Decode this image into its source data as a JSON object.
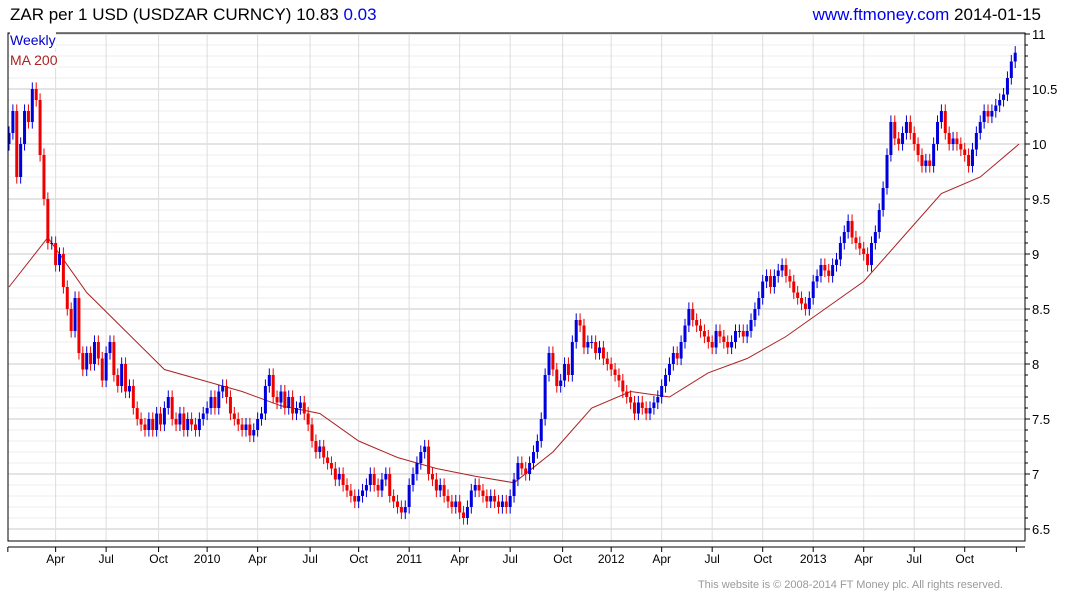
{
  "header": {
    "title": "ZAR per 1 USD (USDZAR CURNCY) 10.83",
    "change": "0.03",
    "site": "www.ftmoney.com",
    "date": "2014-01-15"
  },
  "legend": {
    "period": "Weekly",
    "ma": "MA 200"
  },
  "footer": "This website is © 2008-2014 FT Money plc. All rights reserved.",
  "colors": {
    "up": "#0000dd",
    "down": "#ee0000",
    "ma": "#aa2222",
    "link": "#0000ee"
  },
  "chart_data": {
    "type": "candlestick",
    "title": "ZAR per 1 USD (USDZAR CURNCY)",
    "period": "weekly",
    "ylim": [
      6.5,
      11
    ],
    "yticks": [
      6.5,
      7,
      7.5,
      8,
      8.5,
      9,
      9.5,
      10,
      10.5,
      11
    ],
    "ytick_labels": [
      "6.5",
      "7",
      "7.5",
      "8",
      "8.5",
      "9",
      "9.5",
      "10",
      "10.5",
      "11"
    ],
    "xlim_weeks": [
      -1,
      262
    ],
    "xticks": [
      {
        "week": 12,
        "label": "Apr"
      },
      {
        "week": 25,
        "label": "Jul"
      },
      {
        "week": 38.5,
        "label": "Oct"
      },
      {
        "week": 51,
        "label": "2010"
      },
      {
        "week": 64,
        "label": "Apr"
      },
      {
        "week": 77.5,
        "label": "Jul"
      },
      {
        "week": 90,
        "label": "Oct"
      },
      {
        "week": 103,
        "label": "2011"
      },
      {
        "week": 116,
        "label": "Apr"
      },
      {
        "week": 129,
        "label": "Jul"
      },
      {
        "week": 142.5,
        "label": "Oct"
      },
      {
        "week": 155,
        "label": "2012"
      },
      {
        "week": 168,
        "label": "Apr"
      },
      {
        "week": 181,
        "label": "Jul"
      },
      {
        "week": 194,
        "label": "Oct"
      },
      {
        "week": 207,
        "label": "2013"
      },
      {
        "week": 220,
        "label": "Apr"
      },
      {
        "week": 233,
        "label": "Jul"
      },
      {
        "week": 246,
        "label": "Oct"
      }
    ],
    "close": [
      10.1,
      10.3,
      9.7,
      10.0,
      10.3,
      10.2,
      10.5,
      10.4,
      9.9,
      9.5,
      9.1,
      9.1,
      8.9,
      9.0,
      8.7,
      8.5,
      8.3,
      8.6,
      8.1,
      7.95,
      8.1,
      8.0,
      8.2,
      8.05,
      7.85,
      8.1,
      8.2,
      7.9,
      7.8,
      8.0,
      7.75,
      7.8,
      7.6,
      7.5,
      7.45,
      7.4,
      7.5,
      7.4,
      7.55,
      7.45,
      7.6,
      7.7,
      7.5,
      7.45,
      7.55,
      7.4,
      7.5,
      7.45,
      7.4,
      7.5,
      7.55,
      7.6,
      7.7,
      7.6,
      7.75,
      7.8,
      7.7,
      7.55,
      7.5,
      7.45,
      7.4,
      7.45,
      7.35,
      7.4,
      7.5,
      7.55,
      7.8,
      7.9,
      7.7,
      7.65,
      7.75,
      7.6,
      7.7,
      7.55,
      7.6,
      7.65,
      7.55,
      7.45,
      7.3,
      7.2,
      7.25,
      7.15,
      7.1,
      7.05,
      6.95,
      7.0,
      6.9,
      6.85,
      6.8,
      6.75,
      6.8,
      6.85,
      6.9,
      7.0,
      6.9,
      6.85,
      6.95,
      7.0,
      6.8,
      6.75,
      6.7,
      6.65,
      6.7,
      6.9,
      7.0,
      7.1,
      7.2,
      7.25,
      7.0,
      6.95,
      6.85,
      6.9,
      6.8,
      6.75,
      6.7,
      6.75,
      6.65,
      6.6,
      6.7,
      6.85,
      6.9,
      6.85,
      6.8,
      6.75,
      6.8,
      6.75,
      6.7,
      6.75,
      6.7,
      6.8,
      6.95,
      7.1,
      7.05,
      7.0,
      7.1,
      7.2,
      7.3,
      7.5,
      7.9,
      8.1,
      7.95,
      7.8,
      7.85,
      8.0,
      7.9,
      8.2,
      8.4,
      8.35,
      8.15,
      8.2,
      8.2,
      8.1,
      8.15,
      8.05,
      8.0,
      7.95,
      7.9,
      7.85,
      7.75,
      7.7,
      7.65,
      7.55,
      7.65,
      7.6,
      7.55,
      7.6,
      7.65,
      7.7,
      7.8,
      7.9,
      8.0,
      8.1,
      8.05,
      8.2,
      8.35,
      8.5,
      8.4,
      8.35,
      8.3,
      8.25,
      8.2,
      8.15,
      8.3,
      8.25,
      8.2,
      8.15,
      8.2,
      8.3,
      8.3,
      8.25,
      8.3,
      8.4,
      8.5,
      8.6,
      8.75,
      8.8,
      8.7,
      8.8,
      8.85,
      8.9,
      8.8,
      8.75,
      8.65,
      8.6,
      8.55,
      8.5,
      8.6,
      8.75,
      8.8,
      8.9,
      8.85,
      8.8,
      8.9,
      8.95,
      9.1,
      9.2,
      9.3,
      9.15,
      9.1,
      9.05,
      9.0,
      8.9,
      9.1,
      9.2,
      9.4,
      9.6,
      9.9,
      10.2,
      10.05,
      10.0,
      10.1,
      10.2,
      10.1,
      10.0,
      9.9,
      9.8,
      9.85,
      9.8,
      10.0,
      10.2,
      10.3,
      10.1,
      10.0,
      10.05,
      10.0,
      9.95,
      9.9,
      9.8,
      9.95,
      10.1,
      10.2,
      10.3,
      10.25,
      10.3,
      10.35,
      10.4,
      10.45,
      10.6,
      10.75,
      10.83
    ],
    "ma200_every_10_weeks": [
      8.7,
      9.15,
      8.65,
      8.3,
      7.95,
      7.85,
      7.75,
      7.62,
      7.55,
      7.3,
      7.15,
      7.05,
      6.98,
      6.92,
      7.2,
      7.6,
      7.75,
      7.7,
      7.92,
      8.05,
      8.25,
      8.5,
      8.75,
      9.15,
      9.55,
      9.7,
      10.0
    ],
    "legend": [
      "Weekly",
      "MA 200"
    ],
    "grid": true,
    "last": 10.83,
    "change": 0.03
  }
}
